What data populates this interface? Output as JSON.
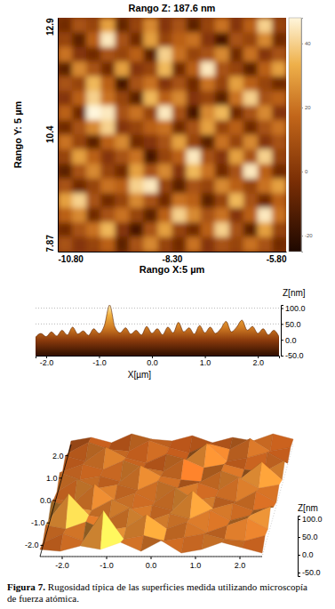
{
  "chart_data": [
    {
      "type": "heatmap",
      "title": "Rango Z: 187.6 nm",
      "x_label": "Rango X:5 µm",
      "y_label": "Rango Y: 5 µm",
      "xlim": [
        -10.8,
        -5.8
      ],
      "xticks": [
        {
          "value": -10.8,
          "label": "-10.80"
        },
        {
          "value": -8.3,
          "label": "-8.30"
        },
        {
          "value": -5.8,
          "label": "-5.80"
        }
      ],
      "ylim": [
        7.87,
        12.9
      ],
      "yticks": [
        12.9,
        10.4,
        7.87
      ],
      "zlim": [
        -25,
        48
      ],
      "zticks": [
        -20,
        0,
        20,
        40
      ],
      "z": [
        [
          -5,
          10,
          5,
          30,
          -8,
          5,
          25,
          0,
          10,
          -10,
          5,
          20,
          0,
          15,
          40,
          5
        ],
        [
          5,
          -10,
          15,
          45,
          10,
          -5,
          30,
          5,
          15,
          20,
          0,
          -15,
          10,
          5,
          25,
          -5
        ],
        [
          20,
          0,
          -5,
          10,
          5,
          15,
          -10,
          40,
          20,
          5,
          10,
          25,
          -5,
          20,
          0,
          10
        ],
        [
          -10,
          25,
          10,
          -5,
          30,
          0,
          5,
          35,
          -5,
          15,
          45,
          10,
          5,
          -10,
          15,
          30
        ],
        [
          10,
          5,
          35,
          15,
          -15,
          10,
          20,
          0,
          10,
          -5,
          20,
          5,
          30,
          15,
          5,
          -5
        ],
        [
          0,
          15,
          40,
          20,
          5,
          -10,
          35,
          15,
          25,
          0,
          5,
          -10,
          20,
          40,
          10,
          15
        ],
        [
          15,
          -5,
          48,
          45,
          10,
          20,
          5,
          45,
          10,
          -15,
          25,
          35,
          -5,
          10,
          25,
          0
        ],
        [
          -5,
          10,
          25,
          40,
          0,
          5,
          15,
          20,
          -5,
          10,
          30,
          5,
          15,
          -5,
          10,
          20
        ],
        [
          20,
          5,
          -10,
          15,
          25,
          -5,
          0,
          10,
          30,
          5,
          -10,
          20,
          5,
          25,
          0,
          10
        ],
        [
          5,
          30,
          15,
          0,
          10,
          20,
          -15,
          5,
          15,
          45,
          10,
          0,
          30,
          10,
          40,
          5
        ],
        [
          -10,
          10,
          25,
          5,
          -5,
          30,
          10,
          25,
          0,
          35,
          20,
          -5,
          10,
          45,
          15,
          -5
        ],
        [
          10,
          -5,
          5,
          20,
          15,
          40,
          45,
          5,
          -10,
          10,
          5,
          25,
          15,
          5,
          20,
          30
        ],
        [
          30,
          40,
          10,
          -5,
          5,
          25,
          10,
          -5,
          20,
          15,
          -10,
          5,
          35,
          10,
          -5,
          15
        ],
        [
          15,
          25,
          -5,
          10,
          20,
          5,
          -10,
          15,
          40,
          25,
          10,
          20,
          0,
          15,
          45,
          20
        ],
        [
          -5,
          10,
          20,
          35,
          0,
          -15,
          10,
          30,
          5,
          -5,
          15,
          40,
          10,
          -10,
          30,
          5
        ],
        [
          10,
          0,
          5,
          15,
          -10,
          10,
          25,
          5,
          -5,
          20,
          0,
          10,
          5,
          20,
          10,
          -5
        ]
      ]
    },
    {
      "type": "area",
      "x_label": "X[µm]",
      "y_label": "Z[nm]",
      "grid": true,
      "x": [
        -2.2,
        -2.1,
        -2,
        -1.9,
        -1.8,
        -1.7,
        -1.6,
        -1.5,
        -1.4,
        -1.3,
        -1.2,
        -1.1,
        -1,
        -0.9,
        -0.8,
        -0.7,
        -0.6,
        -0.5,
        -0.4,
        -0.3,
        -0.2,
        -0.1,
        0,
        0.1,
        0.2,
        0.3,
        0.4,
        0.5,
        0.6,
        0.7,
        0.8,
        0.9,
        1,
        1.1,
        1.2,
        1.3,
        1.4,
        1.5,
        1.6,
        1.7,
        1.8,
        1.9,
        2,
        2.1,
        2.2,
        2.3,
        2.4
      ],
      "values": [
        8,
        20,
        10,
        25,
        12,
        30,
        15,
        40,
        18,
        28,
        14,
        35,
        20,
        45,
        110,
        40,
        22,
        38,
        18,
        30,
        15,
        42,
        20,
        35,
        16,
        40,
        22,
        55,
        25,
        38,
        18,
        45,
        22,
        40,
        20,
        35,
        58,
        25,
        40,
        62,
        30,
        42,
        20,
        35,
        15,
        30,
        10
      ],
      "xlim": [
        -2.2,
        2.4
      ],
      "xticks": [
        {
          "value": -2,
          "label": "-2.0"
        },
        {
          "value": -1,
          "label": "-1.0"
        },
        {
          "value": 0,
          "label": "0.0"
        },
        {
          "value": 1,
          "label": "1.0"
        },
        {
          "value": 2,
          "label": "2.0"
        }
      ],
      "ylim": [
        -50,
        110
      ],
      "yticks": [
        {
          "value": 100,
          "label": "100.0"
        },
        {
          "value": 50,
          "label": "50.0"
        },
        {
          "value": 0,
          "label": "0.0"
        },
        {
          "value": -50,
          "label": "-50.0"
        }
      ]
    },
    {
      "type": "surface",
      "z_label": "Z[nm",
      "xlim": [
        -2.5,
        2.5
      ],
      "xticks": [
        {
          "value": -2,
          "label": "-2.0"
        },
        {
          "value": -1,
          "label": "-1.0"
        },
        {
          "value": 0,
          "label": "0.0"
        },
        {
          "value": 1,
          "label": "1.0"
        },
        {
          "value": 2,
          "label": "2.0"
        }
      ],
      "ylim": [
        -2.5,
        2.5
      ],
      "yticks": [
        {
          "value": 2,
          "label": "2.0"
        },
        {
          "value": 1,
          "label": "1.0"
        },
        {
          "value": 0,
          "label": "0.0"
        },
        {
          "value": -1,
          "label": "-1.0"
        },
        {
          "value": -2,
          "label": "-2.0"
        }
      ],
      "zlim": [
        -60,
        110
      ],
      "zticks": [
        {
          "value": 100,
          "label": "100.0"
        },
        {
          "value": 50,
          "label": "50.0"
        },
        {
          "value": 0,
          "label": "0.0"
        },
        {
          "value": -50,
          "label": "-50.0"
        }
      ],
      "z": [
        [
          10,
          20,
          5,
          30,
          15,
          10,
          25,
          5,
          20,
          10,
          30,
          15
        ],
        [
          5,
          35,
          15,
          10,
          40,
          20,
          5,
          30,
          15,
          45,
          10,
          20
        ],
        [
          25,
          10,
          50,
          20,
          5,
          30,
          15,
          60,
          10,
          20,
          35,
          5
        ],
        [
          10,
          30,
          15,
          40,
          20,
          10,
          45,
          20,
          30,
          15,
          10,
          40
        ],
        [
          35,
          15,
          25,
          10,
          55,
          25,
          15,
          10,
          40,
          20,
          65,
          15
        ],
        [
          10,
          45,
          20,
          30,
          15,
          40,
          20,
          35,
          15,
          50,
          20,
          30
        ],
        [
          20,
          10,
          60,
          15,
          35,
          10,
          50,
          15,
          25,
          10,
          40,
          10
        ],
        [
          40,
          25,
          15,
          45,
          20,
          30,
          15,
          70,
          20,
          35,
          15,
          25
        ],
        [
          15,
          90,
          30,
          20,
          50,
          15,
          35,
          20,
          45,
          15,
          30,
          55
        ],
        [
          30,
          20,
          40,
          15,
          25,
          60,
          20,
          40,
          10,
          30,
          50,
          20
        ],
        [
          10,
          35,
          15,
          100,
          20,
          30,
          15,
          25,
          35,
          20,
          15,
          30
        ],
        [
          20,
          15,
          30,
          20,
          40,
          15,
          45,
          10,
          20,
          40,
          25,
          10
        ]
      ]
    }
  ],
  "caption": {
    "label": "Figura 7.",
    "text": "Rugosidad típica de las superficies medida utilizando microscopía de fuerza atómica."
  }
}
